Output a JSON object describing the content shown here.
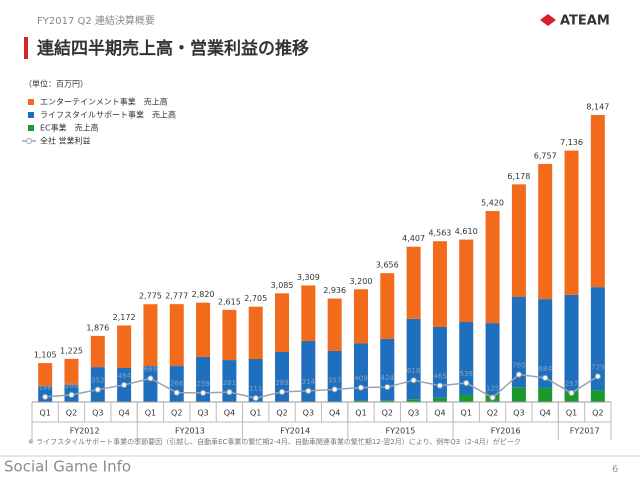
{
  "header": {
    "subtitle": "FY2017 Q2 連結決算概要",
    "title": "連結四半期売上高・営業利益の推移",
    "logo": "ATEAM"
  },
  "chart_data": {
    "type": "bar",
    "stacked": true,
    "unit": "（単位：百万円）",
    "categories": [
      "Q1",
      "Q2",
      "Q3",
      "Q4",
      "Q1",
      "Q2",
      "Q3",
      "Q4",
      "Q1",
      "Q2",
      "Q3",
      "Q4",
      "Q1",
      "Q2",
      "Q3",
      "Q4",
      "Q1",
      "Q2",
      "Q3",
      "Q4",
      "Q1",
      "Q2"
    ],
    "groups": [
      {
        "label": "FY2012",
        "count": 4
      },
      {
        "label": "FY2013",
        "count": 4
      },
      {
        "label": "FY2014",
        "count": 4
      },
      {
        "label": "FY2015",
        "count": 4
      },
      {
        "label": "FY2016",
        "count": 4
      },
      {
        "label": "FY2017",
        "count": 2
      }
    ],
    "series": [
      {
        "name": "EC事業　売上高",
        "color": "#1a9a2c",
        "values": [
          0,
          0,
          0,
          0,
          0,
          0,
          0,
          0,
          0,
          0,
          0,
          0,
          40,
          50,
          80,
          120,
          200,
          200,
          420,
          400,
          300,
          330
        ]
      },
      {
        "name": "ライフスタイルサポート事業　売上高",
        "color": "#1f6fbf",
        "values": [
          450,
          480,
          990,
          965,
          1020,
          1020,
          1280,
          1190,
          1220,
          1420,
          1730,
          1450,
          1620,
          1740,
          2280,
          2010,
          2070,
          2040,
          2560,
          2520,
          2740,
          2930
        ]
      },
      {
        "name": "エンターテインメント事業　売上高",
        "color": "#f26a1b",
        "values": [
          655,
          745,
          886,
          1207,
          1755,
          1757,
          1540,
          1425,
          1485,
          1665,
          1579,
          1486,
          1540,
          1866,
          2047,
          2433,
          2340,
          3180,
          3198,
          3837,
          4096,
          4887
        ]
      }
    ],
    "total_labels": [
      "1,105",
      "1,225",
      "1,876",
      "2,172",
      "2,775",
      "2,777",
      "2,820",
      "2,615",
      "2,705",
      "3,085",
      "3,309",
      "2,936",
      "3,200",
      "3,656",
      "4,407",
      "4,563",
      "4,610",
      "5,420",
      "6,178",
      "6,757",
      "7,136",
      "8,147"
    ],
    "line": {
      "name": "全社 営業利益",
      "color": "#9aa3ad",
      "values": [
        146,
        203,
        352,
        484,
        669,
        266,
        259,
        281,
        111,
        289,
        314,
        357,
        409,
        424,
        618,
        465,
        539,
        125,
        780,
        684,
        257,
        729
      ]
    },
    "ylim": [
      0,
      8600
    ],
    "footnote": "※ ライフスタイルサポート事業の季節要因（引越し、自動車EC事業の繁忙期2-4月、自動車関連事業の繁忙期12-翌2月）により、例年Q3（2-4月）がピーク"
  },
  "footer": {
    "watermark": "Social Game Info",
    "page": "6"
  }
}
